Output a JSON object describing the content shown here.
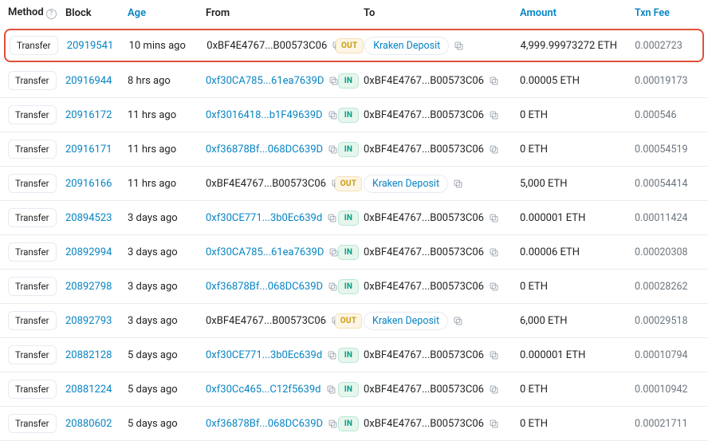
{
  "headers": {
    "method": "Method",
    "block": "Block",
    "age": "Age",
    "from": "From",
    "to": "To",
    "amount": "Amount",
    "fee": "Txn Fee"
  },
  "labels": {
    "out": "OUT",
    "in": "IN",
    "transfer": "Transfer",
    "kraken": "Kraken Deposit"
  },
  "self_addr": "0xBF4E4767...B00573C06",
  "rows": [
    {
      "method": "Transfer",
      "block": "20919541",
      "age": "10 mins ago",
      "from": "0xBF4E4767...B00573C06",
      "from_link": false,
      "dir": "OUT",
      "to_tag": "Kraken Deposit",
      "to": "",
      "amount": "4,999.99973272 ETH",
      "fee": "0.0002723",
      "highlight": true
    },
    {
      "method": "Transfer",
      "block": "20916944",
      "age": "8 hrs ago",
      "from": "0xf30CA785...61ea7639D",
      "from_link": true,
      "dir": "IN",
      "to": "0xBF4E4767...B00573C06",
      "amount": "0.00005 ETH",
      "fee": "0.00019173"
    },
    {
      "method": "Transfer",
      "block": "20916172",
      "age": "11 hrs ago",
      "from": "0xf3016418...b1F49639D",
      "from_link": true,
      "dir": "IN",
      "to": "0xBF4E4767...B00573C06",
      "amount": "0 ETH",
      "fee": "0.000546"
    },
    {
      "method": "Transfer",
      "block": "20916171",
      "age": "11 hrs ago",
      "from": "0xf36878Bf...068DC639D",
      "from_link": true,
      "dir": "IN",
      "to": "0xBF4E4767...B00573C06",
      "amount": "0 ETH",
      "fee": "0.00054519"
    },
    {
      "method": "Transfer",
      "block": "20916166",
      "age": "11 hrs ago",
      "from": "0xBF4E4767...B00573C06",
      "from_link": false,
      "dir": "OUT",
      "to_tag": "Kraken Deposit",
      "to": "",
      "amount": "5,000 ETH",
      "fee": "0.00054414"
    },
    {
      "method": "Transfer",
      "block": "20894523",
      "age": "3 days ago",
      "from": "0xf30CE771...3b0Ec639d",
      "from_link": true,
      "dir": "IN",
      "to": "0xBF4E4767...B00573C06",
      "amount": "0.000001 ETH",
      "fee": "0.00011424"
    },
    {
      "method": "Transfer",
      "block": "20892994",
      "age": "3 days ago",
      "from": "0xf30CA785...61ea7639D",
      "from_link": true,
      "dir": "IN",
      "to": "0xBF4E4767...B00573C06",
      "amount": "0.00006 ETH",
      "fee": "0.00020308"
    },
    {
      "method": "Transfer",
      "block": "20892798",
      "age": "3 days ago",
      "from": "0xf36878Bf...068DC639D",
      "from_link": true,
      "dir": "IN",
      "to": "0xBF4E4767...B00573C06",
      "amount": "0 ETH",
      "fee": "0.00028262"
    },
    {
      "method": "Transfer",
      "block": "20892793",
      "age": "3 days ago",
      "from": "0xBF4E4767...B00573C06",
      "from_link": false,
      "dir": "OUT",
      "to_tag": "Kraken Deposit",
      "to": "",
      "amount": "6,000 ETH",
      "fee": "0.00029518"
    },
    {
      "method": "Transfer",
      "block": "20882128",
      "age": "5 days ago",
      "from": "0xf30CE771...3b0Ec639d",
      "from_link": true,
      "dir": "IN",
      "to": "0xBF4E4767...B00573C06",
      "amount": "0.000001 ETH",
      "fee": "0.00010794"
    },
    {
      "method": "Transfer",
      "block": "20881224",
      "age": "5 days ago",
      "from": "0xf30Cc465...C12f5639d",
      "from_link": true,
      "dir": "IN",
      "to": "0xBF4E4767...B00573C06",
      "amount": "0 ETH",
      "fee": "0.00010942"
    },
    {
      "method": "Transfer",
      "block": "20880602",
      "age": "5 days ago",
      "from": "0xf36878Bf...068DC639D",
      "from_link": true,
      "dir": "IN",
      "to": "0xBF4E4767...B00573C06",
      "amount": "0 ETH",
      "fee": "0.00021711"
    }
  ]
}
